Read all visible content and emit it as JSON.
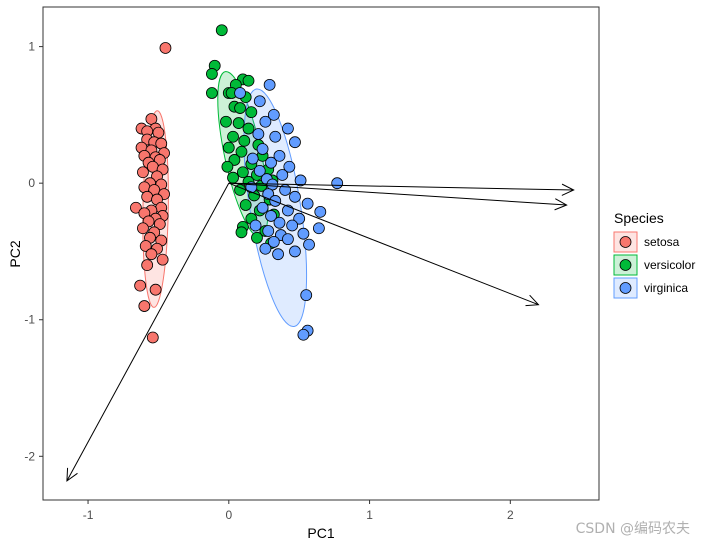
{
  "chart_data": {
    "type": "scatter",
    "subtype": "pca-biplot",
    "title": "",
    "xlabel": "PC1",
    "ylabel": "PC2",
    "xlim": [
      -1.32,
      2.63
    ],
    "ylim": [
      -2.32,
      1.29
    ],
    "xticks": [
      -1,
      0,
      1,
      2
    ],
    "yticks": [
      -2,
      -1,
      0,
      1
    ],
    "grid": false,
    "legend": {
      "title": "Species",
      "position": "right"
    },
    "colors": {
      "setosa": "#f8766d",
      "versicolor": "#00ba38",
      "virginica": "#619cff"
    },
    "series": [
      {
        "name": "setosa",
        "ellipse": {
          "center": [
            -0.52,
            -0.19
          ],
          "semi_axes": [
            0.09,
            0.72
          ],
          "angle_deg": 1
        },
        "points": [
          [
            -0.45,
            0.99
          ],
          [
            -0.55,
            0.47
          ],
          [
            -0.62,
            0.4
          ],
          [
            -0.52,
            0.4
          ],
          [
            -0.58,
            0.38
          ],
          [
            -0.5,
            0.37
          ],
          [
            -0.58,
            0.32
          ],
          [
            -0.53,
            0.3
          ],
          [
            -0.48,
            0.29
          ],
          [
            -0.62,
            0.26
          ],
          [
            -0.55,
            0.24
          ],
          [
            -0.46,
            0.22
          ],
          [
            -0.6,
            0.2
          ],
          [
            -0.52,
            0.19
          ],
          [
            -0.49,
            0.17
          ],
          [
            -0.57,
            0.15
          ],
          [
            -0.54,
            0.12
          ],
          [
            -0.47,
            0.1
          ],
          [
            -0.61,
            0.08
          ],
          [
            -0.51,
            0.05
          ],
          [
            -0.56,
            0.0
          ],
          [
            -0.48,
            -0.01
          ],
          [
            -0.6,
            -0.03
          ],
          [
            -0.53,
            -0.05
          ],
          [
            -0.46,
            -0.08
          ],
          [
            -0.58,
            -0.1
          ],
          [
            -0.51,
            -0.12
          ],
          [
            -0.66,
            -0.18
          ],
          [
            -0.48,
            -0.18
          ],
          [
            -0.55,
            -0.2
          ],
          [
            -0.6,
            -0.22
          ],
          [
            -0.47,
            -0.24
          ],
          [
            -0.52,
            -0.26
          ],
          [
            -0.57,
            -0.28
          ],
          [
            -0.49,
            -0.3
          ],
          [
            -0.61,
            -0.33
          ],
          [
            -0.53,
            -0.36
          ],
          [
            -0.56,
            -0.4
          ],
          [
            -0.48,
            -0.42
          ],
          [
            -0.59,
            -0.46
          ],
          [
            -0.51,
            -0.48
          ],
          [
            -0.55,
            -0.52
          ],
          [
            -0.47,
            -0.56
          ],
          [
            -0.58,
            -0.6
          ],
          [
            -0.63,
            -0.75
          ],
          [
            -0.52,
            -0.78
          ],
          [
            -0.6,
            -0.9
          ],
          [
            -0.54,
            -1.13
          ]
        ]
      },
      {
        "name": "versicolor",
        "ellipse": {
          "center": [
            0.1,
            0.21
          ],
          "semi_axes": [
            0.13,
            0.62
          ],
          "angle_deg": -12
        },
        "points": [
          [
            -0.05,
            1.12
          ],
          [
            -0.1,
            0.86
          ],
          [
            -0.12,
            0.8
          ],
          [
            0.1,
            0.76
          ],
          [
            0.14,
            0.75
          ],
          [
            0.05,
            0.72
          ],
          [
            -0.12,
            0.66
          ],
          [
            0.0,
            0.66
          ],
          [
            0.02,
            0.66
          ],
          [
            0.12,
            0.63
          ],
          [
            0.04,
            0.56
          ],
          [
            0.08,
            0.55
          ],
          [
            0.16,
            0.52
          ],
          [
            -0.02,
            0.45
          ],
          [
            0.07,
            0.44
          ],
          [
            0.14,
            0.4
          ],
          [
            0.03,
            0.34
          ],
          [
            0.11,
            0.31
          ],
          [
            0.21,
            0.28
          ],
          [
            0.0,
            0.26
          ],
          [
            0.09,
            0.23
          ],
          [
            0.24,
            0.2
          ],
          [
            0.04,
            0.17
          ],
          [
            0.16,
            0.14
          ],
          [
            -0.01,
            0.12
          ],
          [
            0.28,
            0.1
          ],
          [
            0.1,
            0.08
          ],
          [
            0.2,
            0.06
          ],
          [
            0.03,
            0.04
          ],
          [
            0.31,
            0.02
          ],
          [
            0.14,
            0.01
          ],
          [
            0.23,
            -0.02
          ],
          [
            0.08,
            -0.05
          ],
          [
            0.18,
            -0.09
          ],
          [
            0.29,
            -0.12
          ],
          [
            0.12,
            -0.16
          ],
          [
            0.22,
            -0.2
          ],
          [
            0.32,
            -0.23
          ],
          [
            0.16,
            -0.26
          ],
          [
            0.1,
            -0.32
          ],
          [
            0.26,
            -0.35
          ],
          [
            0.09,
            -0.36
          ],
          [
            0.2,
            -0.4
          ],
          [
            0.3,
            -0.44
          ]
        ]
      },
      {
        "name": "virginica",
        "ellipse": {
          "center": [
            0.33,
            -0.18
          ],
          "semi_axes": [
            0.18,
            0.88
          ],
          "angle_deg": -9
        },
        "points": [
          [
            0.29,
            0.72
          ],
          [
            0.08,
            0.66
          ],
          [
            0.22,
            0.6
          ],
          [
            0.32,
            0.5
          ],
          [
            0.26,
            0.45
          ],
          [
            0.42,
            0.4
          ],
          [
            0.21,
            0.36
          ],
          [
            0.33,
            0.34
          ],
          [
            0.47,
            0.3
          ],
          [
            0.24,
            0.25
          ],
          [
            0.36,
            0.2
          ],
          [
            0.17,
            0.18
          ],
          [
            0.3,
            0.15
          ],
          [
            0.43,
            0.12
          ],
          [
            0.22,
            0.09
          ],
          [
            0.38,
            0.06
          ],
          [
            0.27,
            0.03
          ],
          [
            0.51,
            0.02
          ],
          [
            0.31,
            -0.01
          ],
          [
            0.77,
            0.0
          ],
          [
            0.16,
            -0.03
          ],
          [
            0.4,
            -0.05
          ],
          [
            0.28,
            -0.08
          ],
          [
            0.47,
            -0.1
          ],
          [
            0.33,
            -0.13
          ],
          [
            0.56,
            -0.15
          ],
          [
            0.24,
            -0.18
          ],
          [
            0.42,
            -0.2
          ],
          [
            0.65,
            -0.21
          ],
          [
            0.3,
            -0.24
          ],
          [
            0.5,
            -0.26
          ],
          [
            0.36,
            -0.29
          ],
          [
            0.19,
            -0.31
          ],
          [
            0.45,
            -0.31
          ],
          [
            0.64,
            -0.33
          ],
          [
            0.28,
            -0.35
          ],
          [
            0.53,
            -0.37
          ],
          [
            0.37,
            -0.38
          ],
          [
            0.42,
            -0.41
          ],
          [
            0.32,
            -0.43
          ],
          [
            0.57,
            -0.45
          ],
          [
            0.26,
            -0.48
          ],
          [
            0.47,
            -0.5
          ],
          [
            0.35,
            -0.52
          ],
          [
            0.55,
            -0.82
          ],
          [
            0.56,
            -1.08
          ],
          [
            0.53,
            -1.11
          ]
        ]
      }
    ],
    "loadings": [
      {
        "x": 2.45,
        "y": -0.05
      },
      {
        "x": 2.4,
        "y": -0.16
      },
      {
        "x": 2.2,
        "y": -0.89
      },
      {
        "x": -1.15,
        "y": -2.18
      }
    ]
  },
  "watermark": "CSDN @编码农夫"
}
